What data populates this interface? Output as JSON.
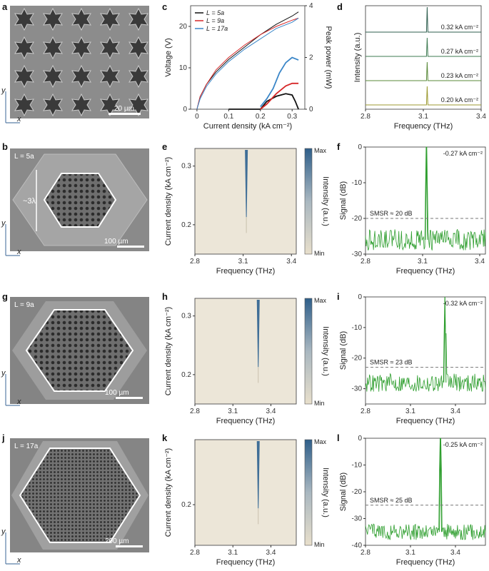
{
  "figure": {
    "panel_labels": [
      "a",
      "b",
      "c",
      "d",
      "e",
      "f",
      "g",
      "h",
      "i",
      "j",
      "k",
      "l"
    ]
  },
  "sem": {
    "a": {
      "scalebar": "20 µm",
      "axis_x": "x",
      "axis_y": "y"
    },
    "b": {
      "corner": "L = 5a",
      "size": "~3λ",
      "scalebar": "100 µm",
      "axis_x": "x",
      "axis_y": "y"
    },
    "g": {
      "corner": "L = 9a",
      "scalebar": "100 µm",
      "axis_x": "x",
      "axis_y": "y"
    },
    "j": {
      "corner": "L = 17a",
      "scalebar": "200 µm",
      "axis_x": "x",
      "axis_y": "y"
    }
  },
  "colors": {
    "L5a": "#111111",
    "L9a": "#d62728",
    "L17a": "#3a86c8",
    "green": "#2e9e2e",
    "peak_axis": "#2e8b57"
  },
  "chart_data": [
    {
      "id": "c",
      "type": "line",
      "xlabel": "Current density (kA cm⁻²)",
      "ylabel": "Voltage (V)",
      "y2label": "Peak power (mW)",
      "xlim": [
        -0.02,
        0.34
      ],
      "ylim": [
        0,
        25
      ],
      "y2lim": [
        0,
        4
      ],
      "xticks": [
        "0",
        "0.1",
        "0.2",
        "0.3"
      ],
      "yticks": [
        "0",
        "10",
        "20"
      ],
      "y2ticks": [
        "0",
        "2",
        "4"
      ],
      "legend": [
        "L = 5a",
        "L = 9a",
        "L = 17a"
      ],
      "series": [
        {
          "name": "L = 5a",
          "axis": "left",
          "x": [
            0,
            0.01,
            0.03,
            0.06,
            0.1,
            0.15,
            0.2,
            0.25,
            0.3,
            0.32
          ],
          "y": [
            0,
            3,
            6,
            9,
            12,
            15,
            18,
            20.5,
            22.5,
            23.5
          ]
        },
        {
          "name": "L = 9a",
          "axis": "left",
          "x": [
            0,
            0.01,
            0.03,
            0.06,
            0.1,
            0.15,
            0.2,
            0.25,
            0.3,
            0.32
          ],
          "y": [
            0,
            3,
            6,
            9.5,
            12.5,
            15.5,
            18,
            20,
            21.5,
            22
          ]
        },
        {
          "name": "L = 17a",
          "axis": "left",
          "x": [
            0,
            0.01,
            0.03,
            0.06,
            0.1,
            0.15,
            0.2,
            0.25,
            0.3,
            0.32
          ],
          "y": [
            0,
            2.5,
            5.5,
            8.5,
            11.5,
            14.5,
            17,
            19.5,
            21,
            22
          ]
        },
        {
          "name": "L = 5a",
          "axis": "right",
          "x": [
            0.1,
            0.2,
            0.22,
            0.25,
            0.28,
            0.3,
            0.31,
            0.32
          ],
          "y": [
            0,
            0,
            0.3,
            0.5,
            0.6,
            0.55,
            0.3,
            0
          ]
        },
        {
          "name": "L = 9a",
          "axis": "right",
          "x": [
            0.2,
            0.22,
            0.25,
            0.28,
            0.3,
            0.31,
            0.32
          ],
          "y": [
            0,
            0.2,
            0.6,
            0.9,
            1.0,
            1.0,
            1.0
          ]
        },
        {
          "name": "L = 17a",
          "axis": "right",
          "x": [
            0.2,
            0.22,
            0.24,
            0.26,
            0.28,
            0.3,
            0.31,
            0.32
          ],
          "y": [
            0.1,
            0.4,
            0.8,
            1.4,
            1.8,
            2.0,
            1.95,
            1.9
          ]
        }
      ]
    },
    {
      "id": "d",
      "type": "line",
      "xlabel": "Frequency (THz)",
      "ylabel": "Intensity (a.u.)",
      "xlim": [
        2.8,
        3.4
      ],
      "xticks": [
        "2.8",
        "3.1",
        "3.4"
      ],
      "peak_frequency": 3.12,
      "series": [
        {
          "label": "0.32 kA cm⁻²",
          "offset": 3
        },
        {
          "label": "0.27 kA cm⁻²",
          "offset": 2
        },
        {
          "label": "0.23 kA cm⁻²",
          "offset": 1
        },
        {
          "label": "0.20 kA cm⁻²",
          "offset": 0
        }
      ]
    },
    {
      "id": "e",
      "type": "heatmap",
      "xlabel": "Frequency (THz)",
      "ylabel": "Current density (kA cm⁻²)",
      "xlim": [
        2.8,
        3.43
      ],
      "ylim": [
        0.15,
        0.33
      ],
      "xticks": [
        "2.8",
        "3.1",
        "3.4"
      ],
      "yticks": [
        "0.2",
        "0.3"
      ],
      "colorbar_label": "Intensity (a.u.)",
      "colorbar_max": "Max",
      "colorbar_min": "Min",
      "ridge_frequency": 3.12
    },
    {
      "id": "f",
      "type": "line",
      "xlabel": "Frequency (THz)",
      "ylabel": "Signal (dB)",
      "xlim": [
        2.8,
        3.43
      ],
      "ylim": [
        -30,
        0
      ],
      "xticks": [
        "2.8",
        "3.1",
        "3.4"
      ],
      "yticks": [
        "0",
        "-10",
        "-20",
        "-30"
      ],
      "annotation": "-0.27 kA cm⁻²",
      "smsr": "SMSR ≈ 20 dB",
      "smsr_level": -20,
      "peak_frequency": 3.12,
      "noise_floor": -26
    },
    {
      "id": "h",
      "type": "heatmap",
      "xlabel": "Frequency (THz)",
      "ylabel": "Current density (kA cm⁻²)",
      "xlim": [
        2.8,
        3.6
      ],
      "ylim": [
        0.15,
        0.33
      ],
      "xticks": [
        "2.8",
        "3.1",
        "3.4"
      ],
      "yticks": [
        "0.2",
        "0.3"
      ],
      "colorbar_label": "Intensity (a.u.)",
      "colorbar_max": "Max",
      "colorbar_min": "Min",
      "ridge_frequency": 3.3
    },
    {
      "id": "i",
      "type": "line",
      "xlabel": "Frequency (THz)",
      "ylabel": "Signal (dB)",
      "xlim": [
        2.8,
        3.6
      ],
      "ylim": [
        -35,
        0
      ],
      "xticks": [
        "2.8",
        "3.1",
        "3.4"
      ],
      "yticks": [
        "0",
        "-10",
        "-20",
        "-30"
      ],
      "annotation": "-0.32 kA cm⁻²",
      "smsr": "SMSR ≈ 23 dB",
      "smsr_level": -23,
      "peak_frequency": 3.33,
      "noise_floor": -28
    },
    {
      "id": "k",
      "type": "heatmap",
      "xlabel": "Frequency (THz)",
      "ylabel": "Current density (kA cm⁻²)",
      "xlim": [
        2.8,
        3.6
      ],
      "ylim": [
        0.15,
        0.28
      ],
      "xticks": [
        "2.8",
        "3.1",
        "3.4"
      ],
      "yticks": [
        "0.2"
      ],
      "colorbar_label": "Intensity (a.u.)",
      "colorbar_max": "Max",
      "colorbar_min": "Min",
      "ridge_frequency": 3.3
    },
    {
      "id": "l",
      "type": "line",
      "xlabel": "Frequency (THz)",
      "ylabel": "Signal (dB)",
      "xlim": [
        2.8,
        3.6
      ],
      "ylim": [
        -40,
        0
      ],
      "xticks": [
        "2.8",
        "3.1",
        "3.4"
      ],
      "yticks": [
        "0",
        "-10",
        "-20",
        "-30",
        "-40"
      ],
      "annotation": "-0.25 kA cm⁻²",
      "smsr": "SMSR ≈ 25 dB",
      "smsr_level": -25,
      "peak_frequency": 3.3,
      "noise_floor": -35
    }
  ]
}
